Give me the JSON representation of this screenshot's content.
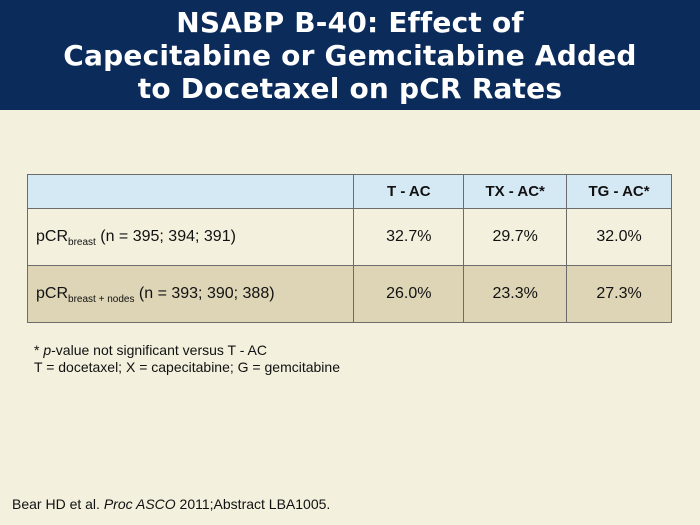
{
  "header": {
    "title_lines": [
      "NSABP B-40: Effect of",
      "Capecitabine or Gemcitabine Added",
      "to Docetaxel on pCR Rates"
    ]
  },
  "table": {
    "columns": [
      "",
      "T - AC",
      "TX - AC*",
      "TG - AC*"
    ],
    "rows": [
      {
        "label_main": "pCR",
        "label_sub": "breast",
        "label_rest": " (n = 395; 394; 391)",
        "values": [
          "32.7%",
          "29.7%",
          "32.0%"
        ]
      },
      {
        "label_main": "pCR",
        "label_sub": "breast + nodes",
        "label_rest": " (n = 393; 390; 388)",
        "values": [
          "26.0%",
          "23.3%",
          "27.3%"
        ]
      }
    ]
  },
  "notes": {
    "line1_prefix": "* ",
    "line1_italic": "p",
    "line1_rest": "-value not significant versus T - AC",
    "line2": "T = docetaxel; X = capecitabine; G = gemcitabine"
  },
  "citation": {
    "prefix": "Bear HD et al. ",
    "journal": "Proc ASCO",
    "suffix": " 2011;Abstract LBA1005."
  },
  "colors": {
    "header_bg": "#0b2c5b",
    "page_bg": "#f3f0dd",
    "table_header_bg": "#d5e9f4",
    "row_alt_bg": "#ddd5b6"
  }
}
